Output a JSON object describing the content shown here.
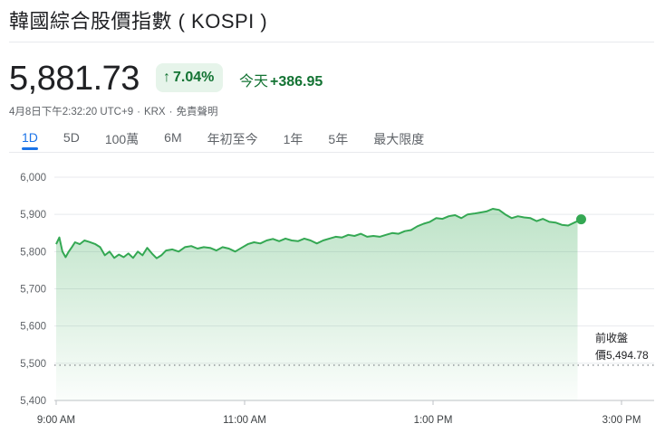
{
  "header": {
    "title": "韓國綜合股價指數 ( KOSPI )",
    "price": "5,881.73",
    "percent_change": "7.04%",
    "change_label": "今天",
    "change_value": "+386.95",
    "timestamp": "4月8日下午2:32:20 UTC+9",
    "exchange": "KRX",
    "disclaimer": "免責聲明"
  },
  "tabs": [
    {
      "label": "1D",
      "active": true
    },
    {
      "label": "5D",
      "active": false
    },
    {
      "label": "100萬",
      "active": false
    },
    {
      "label": "6M",
      "active": false
    },
    {
      "label": "年初至今",
      "active": false
    },
    {
      "label": "1年",
      "active": false
    },
    {
      "label": "5年",
      "active": false
    },
    {
      "label": "最大限度",
      "active": false
    }
  ],
  "colors": {
    "up": "#137333",
    "line": "#34a853",
    "badge_bg": "#e6f4ea",
    "active_tab": "#1a73e8"
  },
  "chart_data": {
    "type": "area",
    "title": "",
    "xlabel": "",
    "ylabel": "",
    "ylim": [
      5400,
      6000
    ],
    "yticks": [
      "6,000",
      "5,900",
      "5,800",
      "5,700",
      "5,600",
      "5,500",
      "5,400"
    ],
    "yticks_values": [
      6000,
      5900,
      5800,
      5700,
      5600,
      5500,
      5400
    ],
    "xlim": [
      "9:00",
      "15:30"
    ],
    "xticks": [
      "9:00 AM",
      "11:00 AM",
      "1:00 PM",
      "3:00 PM"
    ],
    "xticks_minutes": [
      0,
      120,
      240,
      360
    ],
    "grid": true,
    "previous_close": {
      "label": "前收盤",
      "value_label": "價5,494.78",
      "value": 5494.78
    },
    "series": [
      {
        "x_minutes": [
          0,
          2,
          4,
          6,
          8,
          10,
          12,
          15,
          18,
          21,
          25,
          28,
          31,
          34,
          37,
          40,
          43,
          46,
          49,
          52,
          55,
          58,
          61,
          64,
          67,
          70,
          74,
          78,
          82,
          86,
          90,
          94,
          98,
          102,
          106,
          110,
          114,
          118,
          122,
          126,
          130,
          134,
          138,
          142,
          146,
          150,
          154,
          158,
          162,
          166,
          170,
          174,
          178,
          182,
          186,
          190,
          194,
          198,
          202,
          206,
          210,
          214,
          218,
          222,
          226,
          230,
          234,
          238,
          242,
          246,
          250,
          254,
          258,
          262,
          266,
          270,
          274,
          278,
          282,
          286,
          290,
          294,
          298,
          302,
          306,
          310,
          314,
          318,
          322,
          326,
          330,
          332
        ],
        "values": [
          5820,
          5838,
          5800,
          5785,
          5800,
          5812,
          5825,
          5820,
          5830,
          5826,
          5820,
          5812,
          5790,
          5800,
          5783,
          5792,
          5785,
          5795,
          5783,
          5800,
          5790,
          5810,
          5795,
          5782,
          5790,
          5803,
          5806,
          5800,
          5812,
          5815,
          5808,
          5812,
          5810,
          5803,
          5812,
          5808,
          5800,
          5810,
          5820,
          5825,
          5822,
          5830,
          5834,
          5828,
          5835,
          5830,
          5828,
          5835,
          5830,
          5822,
          5830,
          5835,
          5840,
          5838,
          5845,
          5842,
          5848,
          5840,
          5842,
          5840,
          5845,
          5850,
          5848,
          5855,
          5858,
          5868,
          5875,
          5880,
          5890,
          5888,
          5895,
          5898,
          5890,
          5900,
          5902,
          5905,
          5908,
          5915,
          5912,
          5900,
          5890,
          5895,
          5892,
          5890,
          5882,
          5888,
          5880,
          5878,
          5872,
          5870,
          5878,
          5882
        ]
      }
    ]
  }
}
